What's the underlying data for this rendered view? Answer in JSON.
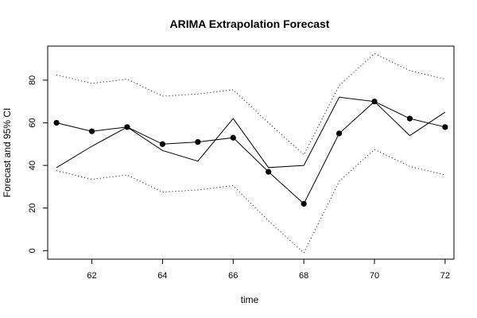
{
  "chart_data": {
    "type": "line",
    "title": "ARIMA Extrapolation Forecast",
    "xlabel": "time",
    "ylabel": "Forecast and 95% CI",
    "xlim": [
      60.75,
      72.25
    ],
    "ylim": [
      -4,
      96
    ],
    "x_ticks": [
      62,
      64,
      66,
      68,
      70,
      72
    ],
    "y_ticks": [
      0,
      20,
      40,
      60,
      80
    ],
    "grid": false,
    "legend": "none",
    "x": [
      61,
      62,
      63,
      64,
      65,
      66,
      67,
      68,
      69,
      70,
      71,
      72
    ],
    "series": [
      {
        "role": "actual",
        "style": "solid",
        "color": "#000000",
        "values": [
          39,
          49,
          58,
          47,
          42,
          62,
          39,
          40,
          72,
          70,
          54,
          65
        ]
      },
      {
        "role": "forecast",
        "style": "line+points",
        "color": "#000000",
        "values": [
          60,
          56,
          58,
          50,
          51,
          53,
          37,
          22,
          55,
          70,
          62,
          58
        ]
      },
      {
        "role": "upper-ci",
        "style": "dotted",
        "color": "#000000",
        "values": [
          82.5,
          78.5,
          80.5,
          72.5,
          73.5,
          75.5,
          60,
          45,
          77.5,
          92.5,
          84.5,
          80.5
        ]
      },
      {
        "role": "lower-ci",
        "style": "dotted",
        "color": "#000000",
        "values": [
          37.5,
          33.5,
          35.5,
          27.5,
          28.5,
          30.5,
          14,
          -1,
          32.5,
          47.5,
          39.5,
          35.5
        ]
      }
    ]
  }
}
